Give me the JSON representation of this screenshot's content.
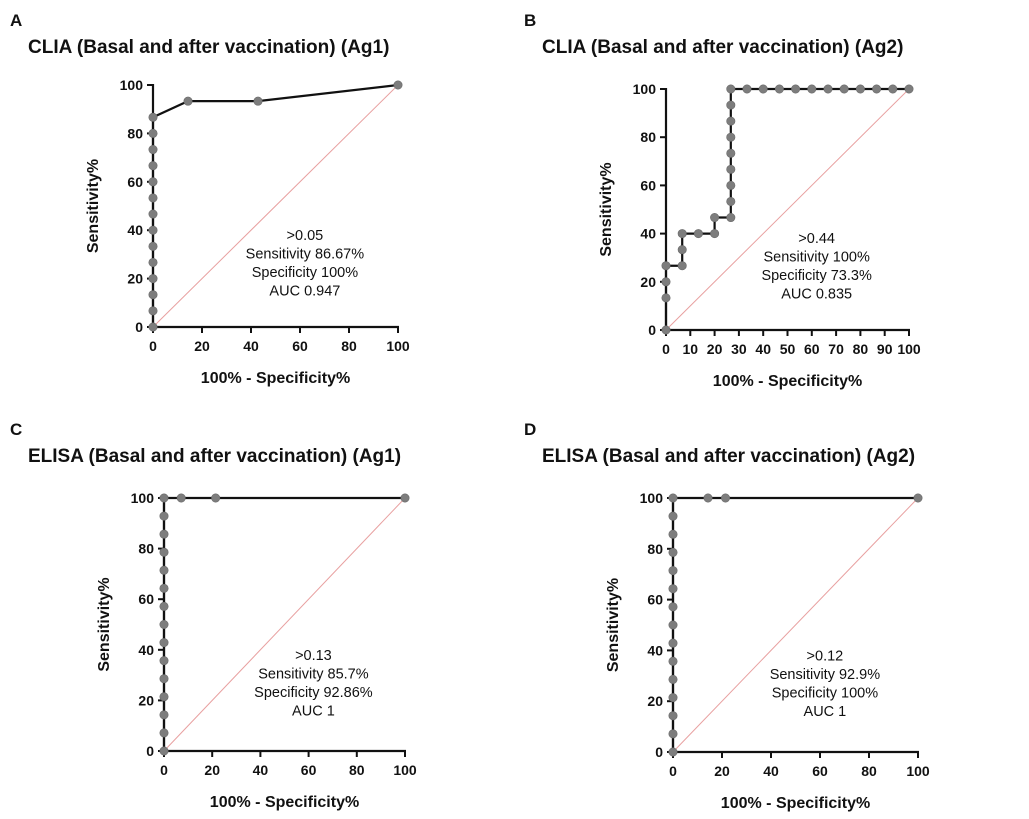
{
  "chart_data": [
    {
      "panel": "A",
      "type": "line",
      "title": "CLIA (Basal and after vaccination) (Ag1)",
      "xlabel": "100% - Specificity%",
      "ylabel": "Sensitivity%",
      "xlim": [
        0,
        100
      ],
      "ylim": [
        0,
        100
      ],
      "xticks": [
        0,
        20,
        40,
        60,
        80,
        100
      ],
      "yticks": [
        0,
        20,
        40,
        60,
        80,
        100
      ],
      "reference_line": true,
      "points": [
        [
          0,
          0
        ],
        [
          0,
          6.67
        ],
        [
          0,
          13.33
        ],
        [
          0,
          20
        ],
        [
          0,
          26.67
        ],
        [
          0,
          33.33
        ],
        [
          0,
          40
        ],
        [
          0,
          46.67
        ],
        [
          0,
          53.33
        ],
        [
          0,
          60
        ],
        [
          0,
          66.67
        ],
        [
          0,
          73.33
        ],
        [
          0,
          80
        ],
        [
          0,
          86.67
        ],
        [
          14.29,
          93.33
        ],
        [
          42.86,
          93.33
        ],
        [
          100,
          100
        ]
      ],
      "annotation": [
        ">0.05",
        "Sensitivity 86.67%",
        "Specificity 100%",
        "AUC 0.947"
      ]
    },
    {
      "panel": "B",
      "type": "line",
      "title": "CLIA (Basal and after vaccination) (Ag2)",
      "xlabel": "100% - Specificity%",
      "ylabel": "Sensitivity%",
      "xlim": [
        0,
        100
      ],
      "ylim": [
        0,
        100
      ],
      "xticks": [
        0,
        10,
        20,
        30,
        40,
        50,
        60,
        70,
        80,
        90,
        100
      ],
      "yticks": [
        0,
        20,
        40,
        60,
        80,
        100
      ],
      "reference_line": true,
      "step": true,
      "points": [
        [
          0,
          0
        ],
        [
          0,
          13.33
        ],
        [
          0,
          20
        ],
        [
          0,
          26.67
        ],
        [
          6.67,
          26.67
        ],
        [
          6.67,
          33.33
        ],
        [
          6.67,
          40
        ],
        [
          13.33,
          40
        ],
        [
          20,
          40
        ],
        [
          20,
          46.67
        ],
        [
          26.67,
          46.67
        ],
        [
          26.67,
          53.33
        ],
        [
          26.67,
          60
        ],
        [
          26.67,
          66.67
        ],
        [
          26.67,
          73.33
        ],
        [
          26.67,
          80
        ],
        [
          26.67,
          86.67
        ],
        [
          26.67,
          93.33
        ],
        [
          26.67,
          100
        ],
        [
          33.33,
          100
        ],
        [
          40,
          100
        ],
        [
          46.67,
          100
        ],
        [
          53.33,
          100
        ],
        [
          60,
          100
        ],
        [
          66.67,
          100
        ],
        [
          73.33,
          100
        ],
        [
          80,
          100
        ],
        [
          86.67,
          100
        ],
        [
          93.33,
          100
        ],
        [
          100,
          100
        ]
      ],
      "annotation": [
        ">0.44",
        "Sensitivity 100%",
        "Specificity 73.3%",
        "AUC 0.835"
      ]
    },
    {
      "panel": "C",
      "type": "line",
      "title": "ELISA (Basal and after vaccination) (Ag1)",
      "xlabel": "100% - Specificity%",
      "ylabel": "Sensitivity%",
      "xlim": [
        0,
        100
      ],
      "ylim": [
        0,
        100
      ],
      "xticks": [
        0,
        20,
        40,
        60,
        80,
        100
      ],
      "yticks": [
        0,
        20,
        40,
        60,
        80,
        100
      ],
      "reference_line": true,
      "points": [
        [
          0,
          0
        ],
        [
          0,
          7.14
        ],
        [
          0,
          14.29
        ],
        [
          0,
          21.43
        ],
        [
          0,
          28.57
        ],
        [
          0,
          35.71
        ],
        [
          0,
          42.86
        ],
        [
          0,
          50
        ],
        [
          0,
          57.14
        ],
        [
          0,
          64.29
        ],
        [
          0,
          71.43
        ],
        [
          0,
          78.57
        ],
        [
          0,
          85.71
        ],
        [
          0,
          92.86
        ],
        [
          0,
          100
        ],
        [
          7.14,
          100
        ],
        [
          21.43,
          100
        ],
        [
          100,
          100
        ]
      ],
      "annotation": [
        ">0.13",
        "Sensitivity 85.7%",
        "Specificity 92.86%",
        "AUC 1"
      ]
    },
    {
      "panel": "D",
      "type": "line",
      "title": "ELISA (Basal and after vaccination) (Ag2)",
      "xlabel": "100% - Specificity%",
      "ylabel": "Sensitivity%",
      "xlim": [
        0,
        100
      ],
      "ylim": [
        0,
        100
      ],
      "xticks": [
        0,
        20,
        40,
        60,
        80,
        100
      ],
      "yticks": [
        0,
        20,
        40,
        60,
        80,
        100
      ],
      "reference_line": true,
      "points": [
        [
          0,
          0
        ],
        [
          0,
          7.14
        ],
        [
          0,
          14.29
        ],
        [
          0,
          21.43
        ],
        [
          0,
          28.57
        ],
        [
          0,
          35.71
        ],
        [
          0,
          42.86
        ],
        [
          0,
          50
        ],
        [
          0,
          57.14
        ],
        [
          0,
          64.29
        ],
        [
          0,
          71.43
        ],
        [
          0,
          78.57
        ],
        [
          0,
          85.71
        ],
        [
          0,
          92.86
        ],
        [
          0,
          100
        ],
        [
          14.29,
          100
        ],
        [
          21.43,
          100
        ],
        [
          100,
          100
        ]
      ],
      "annotation": [
        ">0.12",
        "Sensitivity 92.9%",
        "Specificity 100%",
        "AUC 1"
      ]
    }
  ],
  "colors": {
    "curve": "#111111",
    "points": "#7d7d7d",
    "reference_line": "#e8a0a0"
  }
}
